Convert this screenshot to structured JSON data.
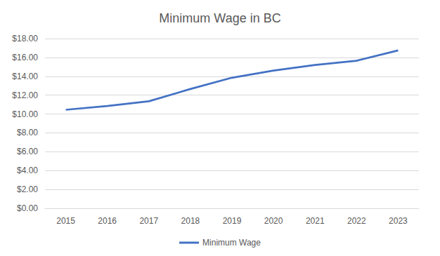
{
  "chart_data": {
    "type": "line",
    "title": "Minimum Wage in BC",
    "categories": [
      "2015",
      "2016",
      "2017",
      "2018",
      "2019",
      "2020",
      "2021",
      "2022",
      "2023"
    ],
    "series": [
      {
        "name": "Minimum Wage",
        "color": "#4472c4",
        "values": [
          10.45,
          10.85,
          11.35,
          12.65,
          13.85,
          14.6,
          15.2,
          15.65,
          16.75
        ]
      }
    ],
    "ylim": [
      0,
      18
    ],
    "yticks": [
      {
        "value": 0,
        "label": "$0.00"
      },
      {
        "value": 2,
        "label": "$2.00"
      },
      {
        "value": 4,
        "label": "$4.00"
      },
      {
        "value": 6,
        "label": "$6.00"
      },
      {
        "value": 8,
        "label": "$8.00"
      },
      {
        "value": 10,
        "label": "$10.00"
      },
      {
        "value": 12,
        "label": "$12.00"
      },
      {
        "value": 14,
        "label": "$14.00"
      },
      {
        "value": 16,
        "label": "$16.00"
      },
      {
        "value": 18,
        "label": "$18.00"
      }
    ],
    "grid": true,
    "legend": "bottom"
  }
}
